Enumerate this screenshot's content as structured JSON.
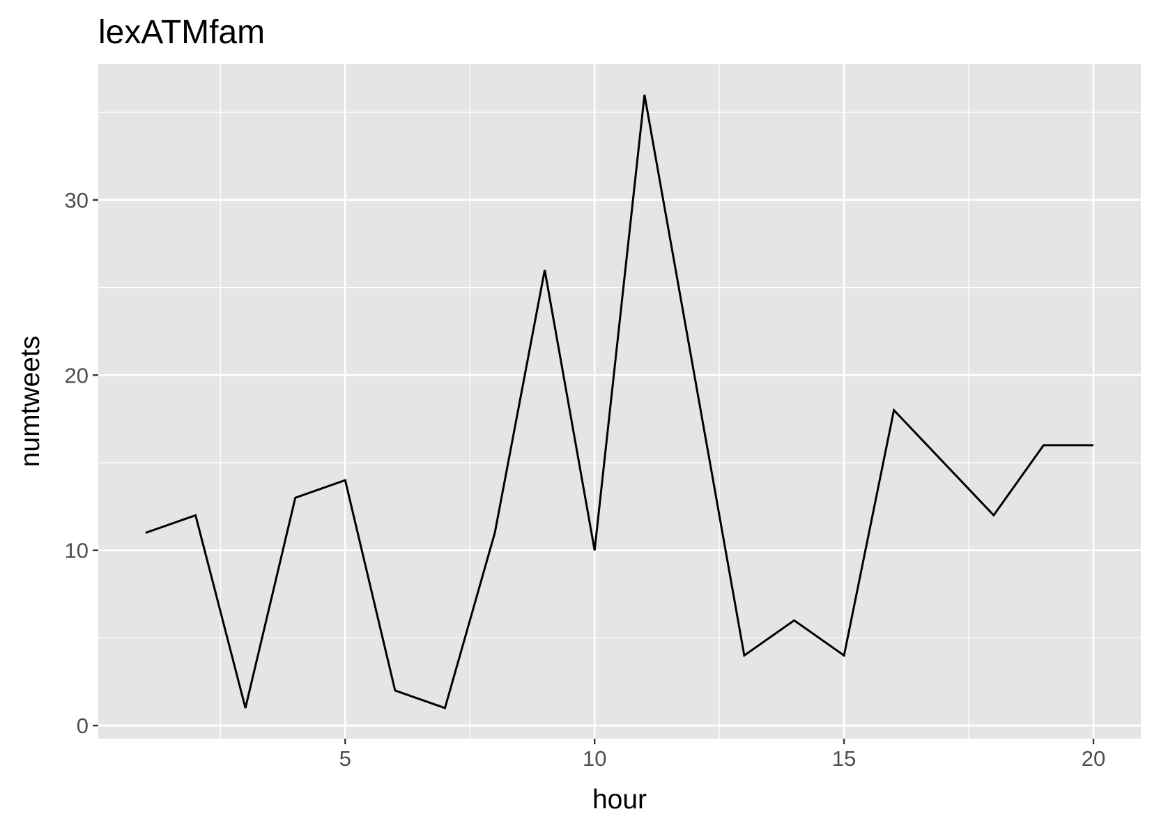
{
  "chart_data": {
    "type": "line",
    "title": "lexATMfam",
    "xlabel": "hour",
    "ylabel": "numtweets",
    "x": [
      1,
      2,
      3,
      4,
      5,
      6,
      7,
      8,
      9,
      10,
      11,
      12,
      13,
      14,
      15,
      16,
      17,
      18,
      19,
      20
    ],
    "series": [
      {
        "values": [
          11,
          12,
          1,
          13,
          14,
          2,
          1,
          11,
          26,
          10,
          36,
          20,
          4,
          6,
          4,
          18,
          15,
          12,
          16,
          16
        ]
      }
    ],
    "xticks": [
      5,
      10,
      15,
      20
    ],
    "yticks": [
      0,
      10,
      20,
      30
    ],
    "xtick_labels": [
      "5",
      "10",
      "15",
      "20"
    ],
    "ytick_labels": [
      "0",
      "10",
      "20",
      "30"
    ],
    "xlim": [
      0.05,
      20.95
    ],
    "ylim": [
      -0.75,
      37.75
    ],
    "grid": true,
    "colors": {
      "panel_bg": "#e5e5e5",
      "grid": "#ffffff",
      "line": "#000000",
      "tick_text": "#4d4d4d"
    }
  }
}
